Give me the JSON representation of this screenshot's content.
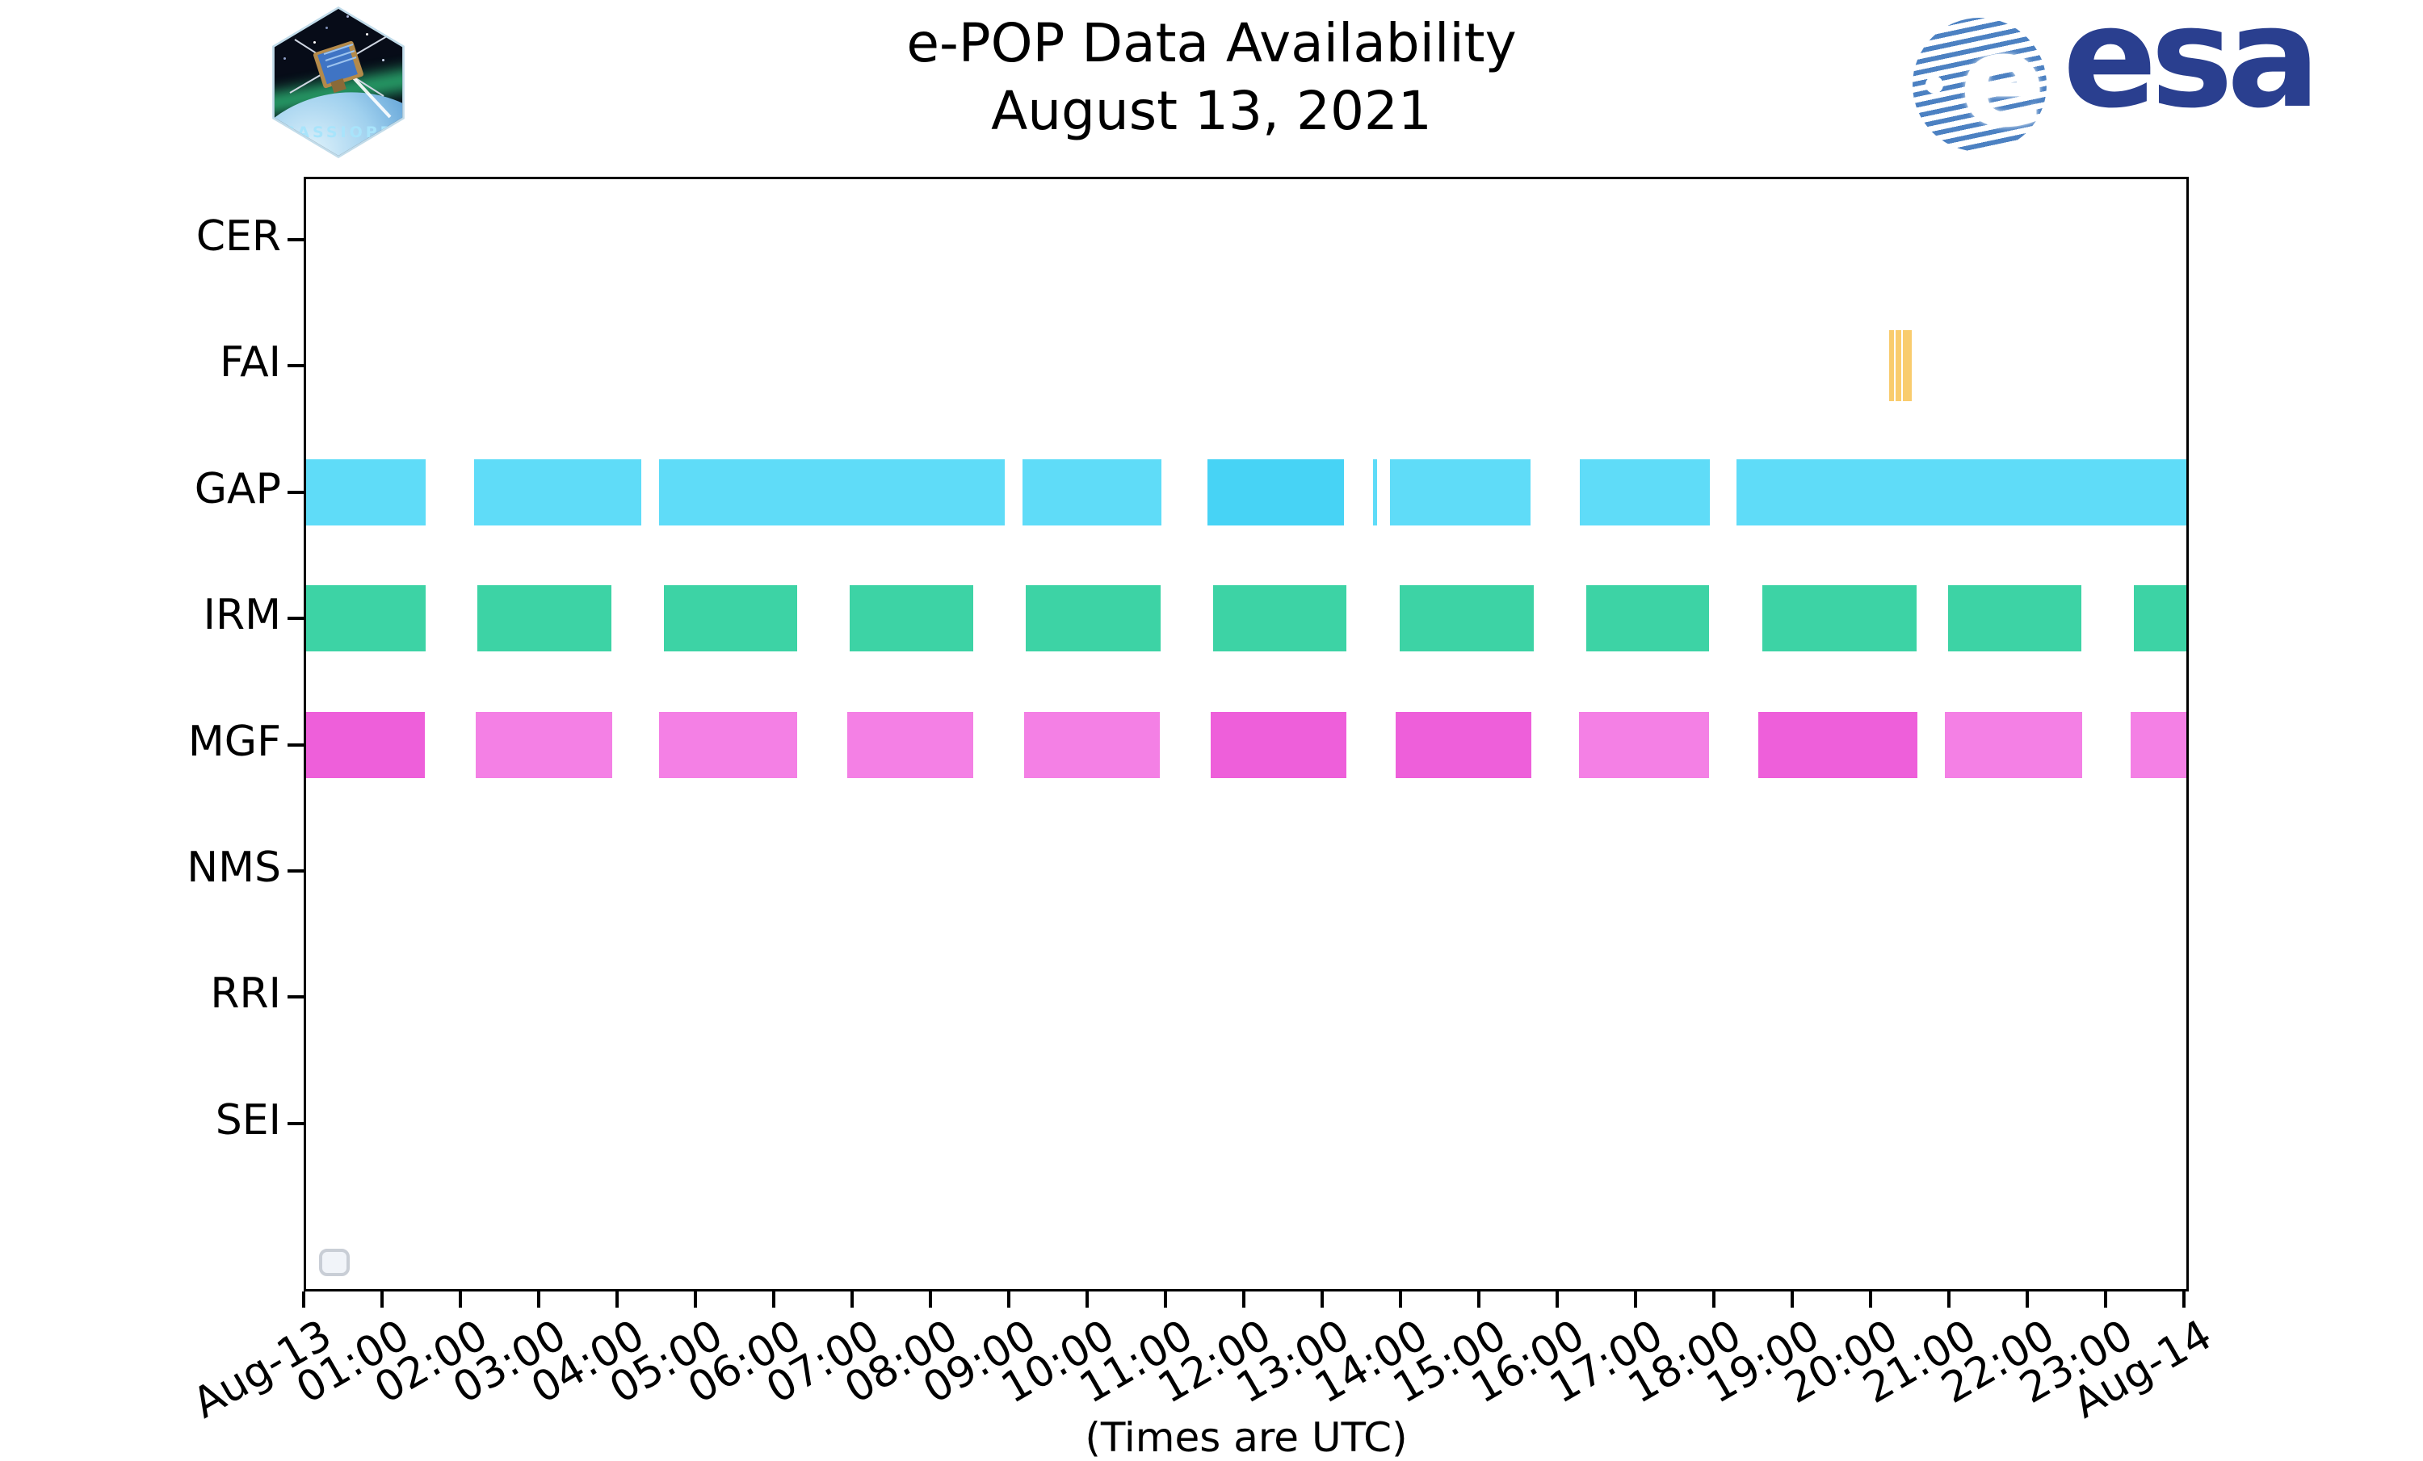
{
  "header": {
    "title_line1": "e-POP Data Availability",
    "title_line2": "August 13, 2021",
    "cassiope_label": "CASSIOPE",
    "esa_wordmark": "esa"
  },
  "chart_data": {
    "type": "timeline-availability-bars (broken_barh)",
    "title": "e-POP Data Availability — August 13, 2021",
    "x_axis": {
      "unit": "hours UTC",
      "xlim": [
        0,
        24
      ],
      "tick_labels": [
        "Aug-13",
        "01:00",
        "02:00",
        "03:00",
        "04:00",
        "05:00",
        "06:00",
        "07:00",
        "08:00",
        "09:00",
        "10:00",
        "11:00",
        "12:00",
        "13:00",
        "14:00",
        "15:00",
        "16:00",
        "17:00",
        "18:00",
        "19:00",
        "20:00",
        "21:00",
        "22:00",
        "23:00",
        "Aug-14"
      ],
      "caption": "(Times are UTC)"
    },
    "y_axis": {
      "labels": [
        "CER",
        "FAI",
        "GAP",
        "IRM",
        "MGF",
        "NMS",
        "RRI",
        "SEI"
      ]
    },
    "grid": false,
    "legend_entries": [],
    "rows": [
      {
        "label": "CER",
        "color": null,
        "segments": []
      },
      {
        "label": "FAI",
        "color": "#f9cc6e",
        "color_dark": "#f9cc6e",
        "segments": [
          {
            "start": 20.21,
            "end": 20.27
          },
          {
            "start": 20.29,
            "end": 20.36
          },
          {
            "start": 20.38,
            "end": 20.49
          }
        ]
      },
      {
        "label": "GAP",
        "color": "#5fdcf8",
        "color_dark": "#47d3f5",
        "segments": [
          {
            "start": 0.0,
            "end": 1.53
          },
          {
            "start": 2.14,
            "end": 4.28
          },
          {
            "start": 4.51,
            "end": 8.92
          },
          {
            "start": 9.14,
            "end": 10.92
          },
          {
            "start": 11.5,
            "end": 13.25,
            "variant": "dark"
          },
          {
            "start": 13.62,
            "end": 13.67
          },
          {
            "start": 13.83,
            "end": 15.63
          },
          {
            "start": 16.26,
            "end": 17.92
          },
          {
            "start": 18.26,
            "end": 24.0
          }
        ]
      },
      {
        "label": "IRM",
        "color": "#3dd3a5",
        "color_dark": "#3dd3a5",
        "segments": [
          {
            "start": 0.0,
            "end": 1.53
          },
          {
            "start": 2.19,
            "end": 3.9
          },
          {
            "start": 4.57,
            "end": 6.27
          },
          {
            "start": 6.94,
            "end": 8.52
          },
          {
            "start": 9.19,
            "end": 10.91
          },
          {
            "start": 11.58,
            "end": 13.28
          },
          {
            "start": 13.96,
            "end": 15.67
          },
          {
            "start": 16.34,
            "end": 17.91
          },
          {
            "start": 18.59,
            "end": 20.56
          },
          {
            "start": 20.96,
            "end": 22.66
          },
          {
            "start": 23.33,
            "end": 24.0
          }
        ]
      },
      {
        "label": "MGF",
        "color": "#f480e5",
        "color_dark": "#ee5fda",
        "segments": [
          {
            "start": 0.0,
            "end": 1.52,
            "variant": "dark"
          },
          {
            "start": 2.17,
            "end": 3.91
          },
          {
            "start": 4.51,
            "end": 6.27
          },
          {
            "start": 6.91,
            "end": 8.52
          },
          {
            "start": 9.17,
            "end": 10.9
          },
          {
            "start": 11.55,
            "end": 13.28,
            "variant": "dark"
          },
          {
            "start": 13.91,
            "end": 15.64,
            "variant": "dark"
          },
          {
            "start": 16.25,
            "end": 17.91
          },
          {
            "start": 18.54,
            "end": 20.57,
            "variant": "dark"
          },
          {
            "start": 20.92,
            "end": 22.67
          },
          {
            "start": 23.29,
            "end": 24.0
          }
        ]
      },
      {
        "label": "NMS",
        "color": null,
        "segments": []
      },
      {
        "label": "RRI",
        "color": null,
        "segments": []
      },
      {
        "label": "SEI",
        "color": null,
        "segments": []
      }
    ]
  }
}
